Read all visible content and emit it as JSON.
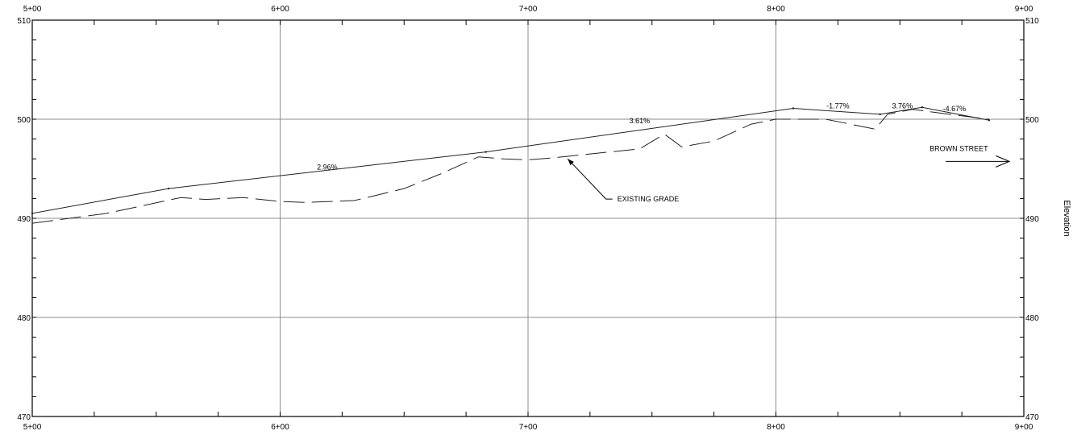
{
  "chart_data": {
    "type": "line",
    "title": "",
    "xlabel": "",
    "ylabel": "Elevation",
    "xlim": [
      500,
      900
    ],
    "ylim": [
      470,
      510
    ],
    "x_ticks": [
      {
        "value": 500,
        "label": "5+00"
      },
      {
        "value": 600,
        "label": "6+00"
      },
      {
        "value": 700,
        "label": "7+00"
      },
      {
        "value": 800,
        "label": "8+00"
      },
      {
        "value": 900,
        "label": "9+00"
      }
    ],
    "y_ticks": [
      {
        "value": 470,
        "label": "470"
      },
      {
        "value": 480,
        "label": "480"
      },
      {
        "value": 490,
        "label": "490"
      },
      {
        "value": 500,
        "label": "500"
      },
      {
        "value": 510,
        "label": "510"
      }
    ],
    "grid": true,
    "series": [
      {
        "name": "",
        "style": "solid",
        "points": [
          [
            500,
            490.5
          ],
          [
            555,
            493.0
          ],
          [
            683,
            496.7
          ],
          [
            807,
            501.1
          ],
          [
            842,
            500.5
          ],
          [
            859,
            501.2
          ],
          [
            886,
            499.9
          ]
        ]
      },
      {
        "name": "EXISTING GRADE",
        "style": "dashed",
        "points": [
          [
            500,
            489.5
          ],
          [
            530,
            490.5
          ],
          [
            560,
            492.1
          ],
          [
            570,
            491.9
          ],
          [
            585,
            492.1
          ],
          [
            600,
            491.7
          ],
          [
            610,
            491.6
          ],
          [
            630,
            491.8
          ],
          [
            650,
            493.0
          ],
          [
            665,
            494.5
          ],
          [
            680,
            496.2
          ],
          [
            690,
            496.0
          ],
          [
            700,
            495.9
          ],
          [
            710,
            496.1
          ],
          [
            725,
            496.5
          ],
          [
            745,
            497.0
          ],
          [
            755,
            498.5
          ],
          [
            762,
            497.2
          ],
          [
            775,
            497.8
          ],
          [
            790,
            499.5
          ],
          [
            800,
            500.0
          ],
          [
            820,
            500.0
          ],
          [
            830,
            499.5
          ],
          [
            840,
            499.0
          ],
          [
            845,
            500.5
          ],
          [
            855,
            501.0
          ],
          [
            870,
            500.5
          ],
          [
            886,
            500.0
          ]
        ]
      }
    ],
    "grade_labels": [
      {
        "text": "2.96%",
        "x": 619,
        "y": 494.9
      },
      {
        "text": "3.61%",
        "x": 745,
        "y": 499.6
      },
      {
        "text": "-1.77%",
        "x": 825,
        "y": 501.1
      },
      {
        "text": "3.76%",
        "x": 851,
        "y": 501.1
      },
      {
        "text": "-4.67%",
        "x": 872,
        "y": 500.8
      }
    ],
    "annotations": [
      {
        "text": "EXISTING GRADE",
        "x": 736,
        "y": 491.7,
        "arrow_to": [
          716,
          496.0
        ]
      },
      {
        "text": "BROWN STREET",
        "x": 862,
        "y": 496.8,
        "arrow": "right"
      }
    ],
    "colors": {
      "line": "#222222",
      "grid": "#8c8c8c",
      "axis": "#000000"
    }
  }
}
